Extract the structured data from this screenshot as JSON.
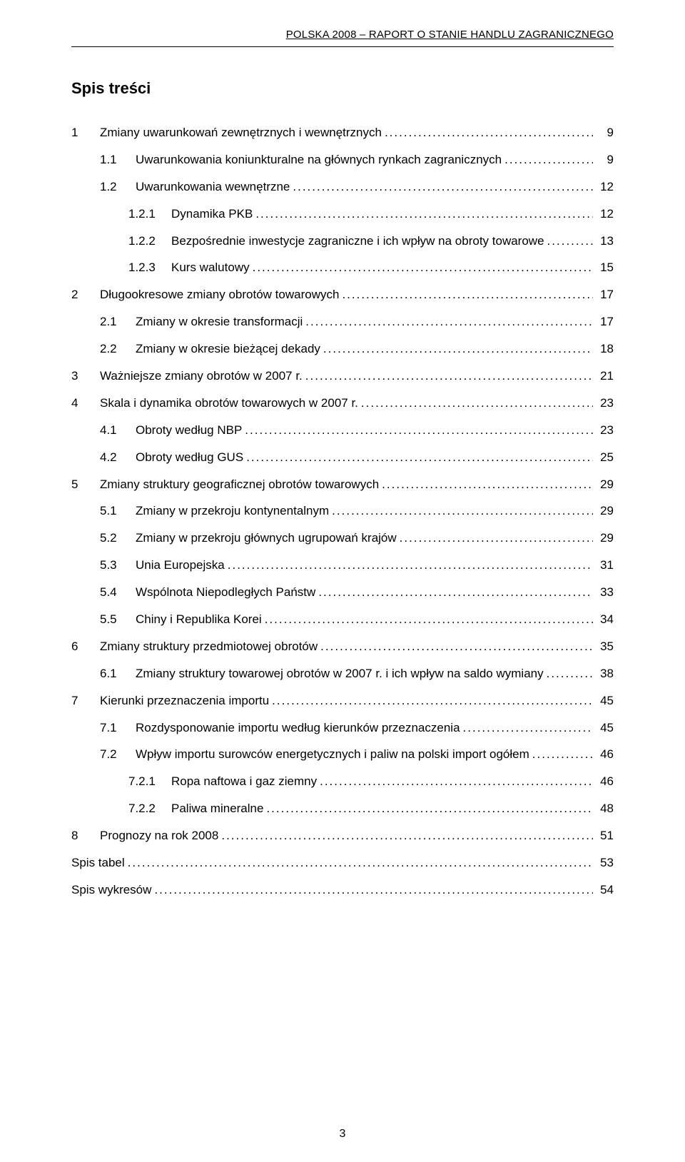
{
  "header": {
    "text": "POLSKA 2008 – RAPORT O STANIE HANDLU ZAGRANICZNEGO"
  },
  "tocTitle": "Spis treści",
  "entries": [
    {
      "num": "1",
      "level": 1,
      "text": "Zmiany uwarunkowań zewnętrznych i wewnętrznych",
      "page": "9"
    },
    {
      "num": "1.1",
      "level": 2,
      "text": "Uwarunkowania koniunkturalne na głównych rynkach zagranicznych",
      "page": "9"
    },
    {
      "num": "1.2",
      "level": 2,
      "text": "Uwarunkowania wewnętrzne",
      "page": "12"
    },
    {
      "num": "1.2.1",
      "level": 3,
      "text": "Dynamika PKB",
      "page": "12"
    },
    {
      "num": "1.2.2",
      "level": 3,
      "text": "Bezpośrednie inwestycje zagraniczne i ich wpływ na obroty towarowe",
      "page": "13"
    },
    {
      "num": "1.2.3",
      "level": 3,
      "text": "Kurs walutowy",
      "page": "15"
    },
    {
      "num": "2",
      "level": 1,
      "text": "Długookresowe zmiany obrotów towarowych",
      "page": "17"
    },
    {
      "num": "2.1",
      "level": 2,
      "text": "Zmiany w okresie transformacji",
      "page": "17"
    },
    {
      "num": "2.2",
      "level": 2,
      "text": "Zmiany w okresie bieżącej dekady",
      "page": "18"
    },
    {
      "num": "3",
      "level": 1,
      "text": "Ważniejsze zmiany obrotów w 2007 r.",
      "page": "21"
    },
    {
      "num": "4",
      "level": 1,
      "text": "Skala i dynamika obrotów towarowych w 2007 r.",
      "page": "23"
    },
    {
      "num": "4.1",
      "level": 2,
      "text": "Obroty według NBP",
      "page": "23"
    },
    {
      "num": "4.2",
      "level": 2,
      "text": "Obroty według GUS",
      "page": "25"
    },
    {
      "num": "5",
      "level": 1,
      "text": "Zmiany struktury geograficznej obrotów towarowych",
      "page": "29"
    },
    {
      "num": "5.1",
      "level": 2,
      "text": "Zmiany w przekroju kontynentalnym",
      "page": "29"
    },
    {
      "num": "5.2",
      "level": 2,
      "text": "Zmiany w przekroju głównych ugrupowań krajów",
      "page": "29"
    },
    {
      "num": "5.3",
      "level": 2,
      "text": "Unia Europejska",
      "page": "31"
    },
    {
      "num": "5.4",
      "level": 2,
      "text": "Wspólnota Niepodległych Państw",
      "page": "33"
    },
    {
      "num": "5.5",
      "level": 2,
      "text": "Chiny i Republika Korei",
      "page": "34"
    },
    {
      "num": "6",
      "level": 1,
      "text": "Zmiany struktury przedmiotowej obrotów",
      "page": "35"
    },
    {
      "num": "6.1",
      "level": 2,
      "text": "Zmiany struktury towarowej obrotów w 2007 r. i ich wpływ na saldo wymiany",
      "page": "38"
    },
    {
      "num": "7",
      "level": 1,
      "text": "Kierunki przeznaczenia importu",
      "page": "45"
    },
    {
      "num": "7.1",
      "level": 2,
      "text": "Rozdysponowanie importu według kierunków przeznaczenia",
      "page": "45"
    },
    {
      "num": "7.2",
      "level": 2,
      "text": "Wpływ importu surowców energetycznych i paliw na polski import ogółem",
      "page": "46"
    },
    {
      "num": "7.2.1",
      "level": 3,
      "text": "Ropa naftowa i gaz ziemny",
      "page": "46"
    },
    {
      "num": "7.2.2",
      "level": 3,
      "text": "Paliwa mineralne",
      "page": "48"
    },
    {
      "num": "8",
      "level": 1,
      "text": "Prognozy na rok 2008",
      "page": "51"
    },
    {
      "num": "",
      "level": 0,
      "text": "Spis tabel",
      "page": "53"
    },
    {
      "num": "",
      "level": 0,
      "text": "Spis wykresów",
      "page": "54"
    }
  ],
  "pageNumber": "3"
}
